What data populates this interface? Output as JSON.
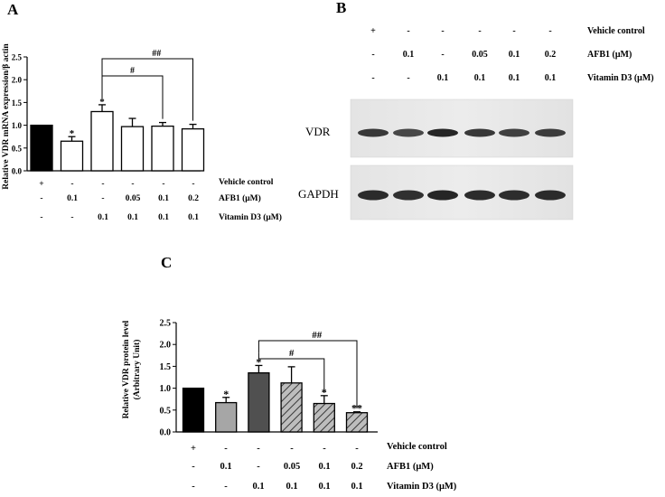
{
  "panels": {
    "a": "A",
    "b": "B",
    "c": "C"
  },
  "conditions": {
    "rows": [
      "Vehicle control",
      "AFB1 (μM)",
      "Vitamin D3 (μM)"
    ],
    "vehicle": [
      "+",
      "-",
      "-",
      "-",
      "-",
      "-"
    ],
    "afb1": [
      "-",
      "0.1",
      "-",
      "0.05",
      "0.1",
      "0.2"
    ],
    "vitd3": [
      "-",
      "-",
      "0.1",
      "0.1",
      "0.1",
      "0.1"
    ]
  },
  "blot": {
    "labels": [
      "VDR",
      "GAPDH"
    ]
  },
  "chart_data": [
    {
      "panel": "A",
      "type": "bar",
      "categories": [
        "1",
        "2",
        "3",
        "4",
        "5",
        "6"
      ],
      "series": [
        {
          "values": [
            1.0,
            0.65,
            1.3,
            0.97,
            0.98,
            0.92
          ],
          "errors": [
            0.0,
            0.1,
            0.15,
            0.18,
            0.08,
            0.1
          ]
        }
      ],
      "fill": [
        "#000000",
        "#ffffff",
        "#ffffff",
        "#ffffff",
        "#ffffff",
        "#ffffff"
      ],
      "stars": [
        "",
        "*",
        "*",
        "",
        "",
        ""
      ],
      "brackets": [
        {
          "from": 2,
          "to": 5,
          "label": "##"
        },
        {
          "from": 2,
          "to": 4,
          "label": "#"
        }
      ],
      "ylabel": "Relative VDR mRNA expression/β actin",
      "ylim": [
        0,
        2.5
      ],
      "yticks": [
        "0.0",
        "0.5",
        "1.0",
        "1.5",
        "2.0",
        "2.5"
      ],
      "grid": false
    },
    {
      "panel": "C",
      "type": "bar",
      "categories": [
        "1",
        "2",
        "3",
        "4",
        "5",
        "6"
      ],
      "series": [
        {
          "values": [
            1.0,
            0.67,
            1.35,
            1.12,
            0.65,
            0.44
          ],
          "errors": [
            0.0,
            0.12,
            0.17,
            0.37,
            0.18,
            0.02
          ]
        }
      ],
      "fill": [
        "#000000",
        "#a6a6a6",
        "#505050",
        "hatch",
        "hatch",
        "hatch"
      ],
      "stars": [
        "",
        "*",
        "*",
        "",
        "*",
        "**"
      ],
      "brackets": [
        {
          "from": 2,
          "to": 5,
          "label": "##"
        },
        {
          "from": 2,
          "to": 4,
          "label": "#"
        }
      ],
      "ylabel": "Relative VDR protein level",
      "ylabel2": "(Arbitrary Unit)",
      "ylim": [
        0,
        2.5
      ],
      "yticks": [
        "0.0",
        "0.5",
        "1.0",
        "1.5",
        "2.0",
        "2.5"
      ],
      "grid": false
    }
  ]
}
